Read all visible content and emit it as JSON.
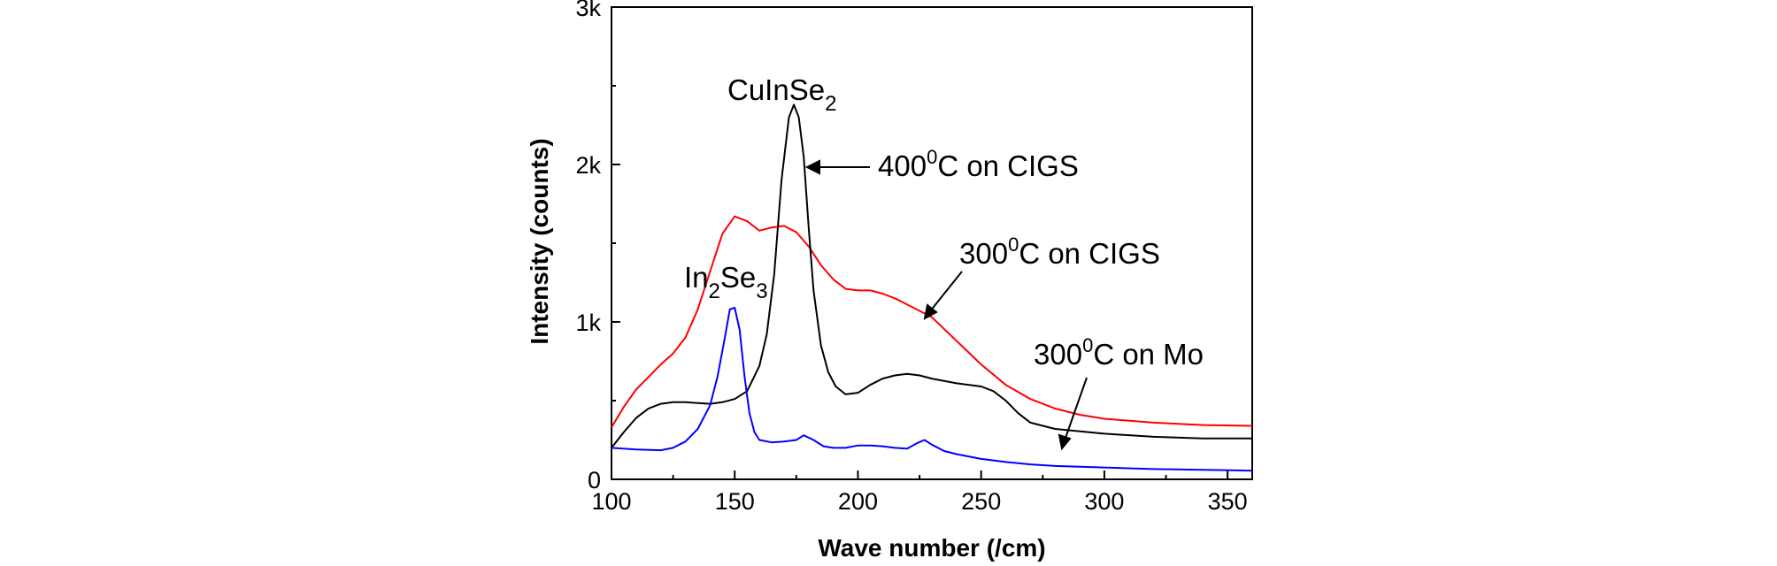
{
  "chart_data": {
    "type": "line",
    "xlabel": "Wave number (/cm)",
    "ylabel": "Intensity (counts)",
    "xlim": [
      100,
      360
    ],
    "ylim": [
      0,
      3000
    ],
    "x_ticks": [
      100,
      150,
      200,
      250,
      300,
      350
    ],
    "x_tick_labels": [
      "100",
      "150",
      "200",
      "250",
      "300",
      "350"
    ],
    "y_ticks": [
      0,
      1000,
      2000,
      3000
    ],
    "y_tick_labels": [
      "0",
      "1k",
      "2k",
      "3k"
    ],
    "grid": false,
    "legend": "none",
    "series": [
      {
        "color": "#ff0000",
        "x": [
          100,
          105,
          110,
          115,
          120,
          125,
          130,
          135,
          140,
          145,
          150,
          155,
          160,
          165,
          170,
          175,
          180,
          185,
          190,
          195,
          200,
          205,
          210,
          215,
          220,
          225,
          230,
          240,
          250,
          260,
          270,
          280,
          290,
          300,
          320,
          340,
          360
        ],
        "y": [
          330,
          460,
          570,
          650,
          730,
          800,
          900,
          1080,
          1320,
          1560,
          1670,
          1640,
          1580,
          1600,
          1610,
          1570,
          1480,
          1360,
          1270,
          1210,
          1200,
          1200,
          1180,
          1150,
          1110,
          1070,
          1030,
          880,
          730,
          600,
          510,
          450,
          410,
          385,
          360,
          345,
          340
        ]
      },
      {
        "color": "#000000",
        "x": [
          100,
          105,
          110,
          115,
          120,
          125,
          130,
          135,
          140,
          145,
          150,
          155,
          160,
          163,
          166,
          169,
          172,
          174,
          176,
          178,
          180,
          182,
          185,
          188,
          191,
          195,
          200,
          205,
          210,
          215,
          220,
          225,
          230,
          240,
          250,
          255,
          260,
          265,
          270,
          280,
          300,
          320,
          340,
          360
        ],
        "y": [
          200,
          300,
          390,
          450,
          480,
          490,
          490,
          485,
          480,
          490,
          510,
          560,
          720,
          920,
          1300,
          1900,
          2300,
          2380,
          2300,
          2050,
          1600,
          1200,
          850,
          680,
          590,
          540,
          550,
          600,
          640,
          660,
          670,
          660,
          640,
          610,
          590,
          560,
          500,
          420,
          360,
          320,
          290,
          270,
          260,
          260
        ]
      },
      {
        "color": "#0000ff",
        "x": [
          100,
          110,
          120,
          125,
          130,
          135,
          140,
          143,
          146,
          148,
          150,
          152,
          154,
          156,
          158,
          160,
          165,
          170,
          175,
          178,
          182,
          186,
          190,
          195,
          200,
          205,
          210,
          215,
          220,
          224,
          227,
          230,
          235,
          240,
          250,
          260,
          270,
          280,
          300,
          320,
          340,
          360
        ],
        "y": [
          200,
          190,
          185,
          200,
          240,
          320,
          470,
          650,
          900,
          1080,
          1090,
          950,
          650,
          420,
          300,
          250,
          235,
          240,
          250,
          280,
          250,
          210,
          200,
          200,
          215,
          215,
          210,
          200,
          195,
          230,
          250,
          220,
          180,
          160,
          130,
          110,
          95,
          85,
          75,
          65,
          60,
          55
        ]
      }
    ],
    "annotations": [
      {
        "main": "CuInSe",
        "sub": "2"
      },
      {
        "main": "In",
        "sub": "2",
        "main2": "Se",
        "sub2": "3"
      },
      {
        "main": "400",
        "sup": "0",
        "rest": "C on CIGS"
      },
      {
        "main": "300",
        "sup": "0",
        "rest": "C on CIGS"
      },
      {
        "main": "300",
        "sup": "0",
        "rest": "C on Mo"
      }
    ]
  }
}
